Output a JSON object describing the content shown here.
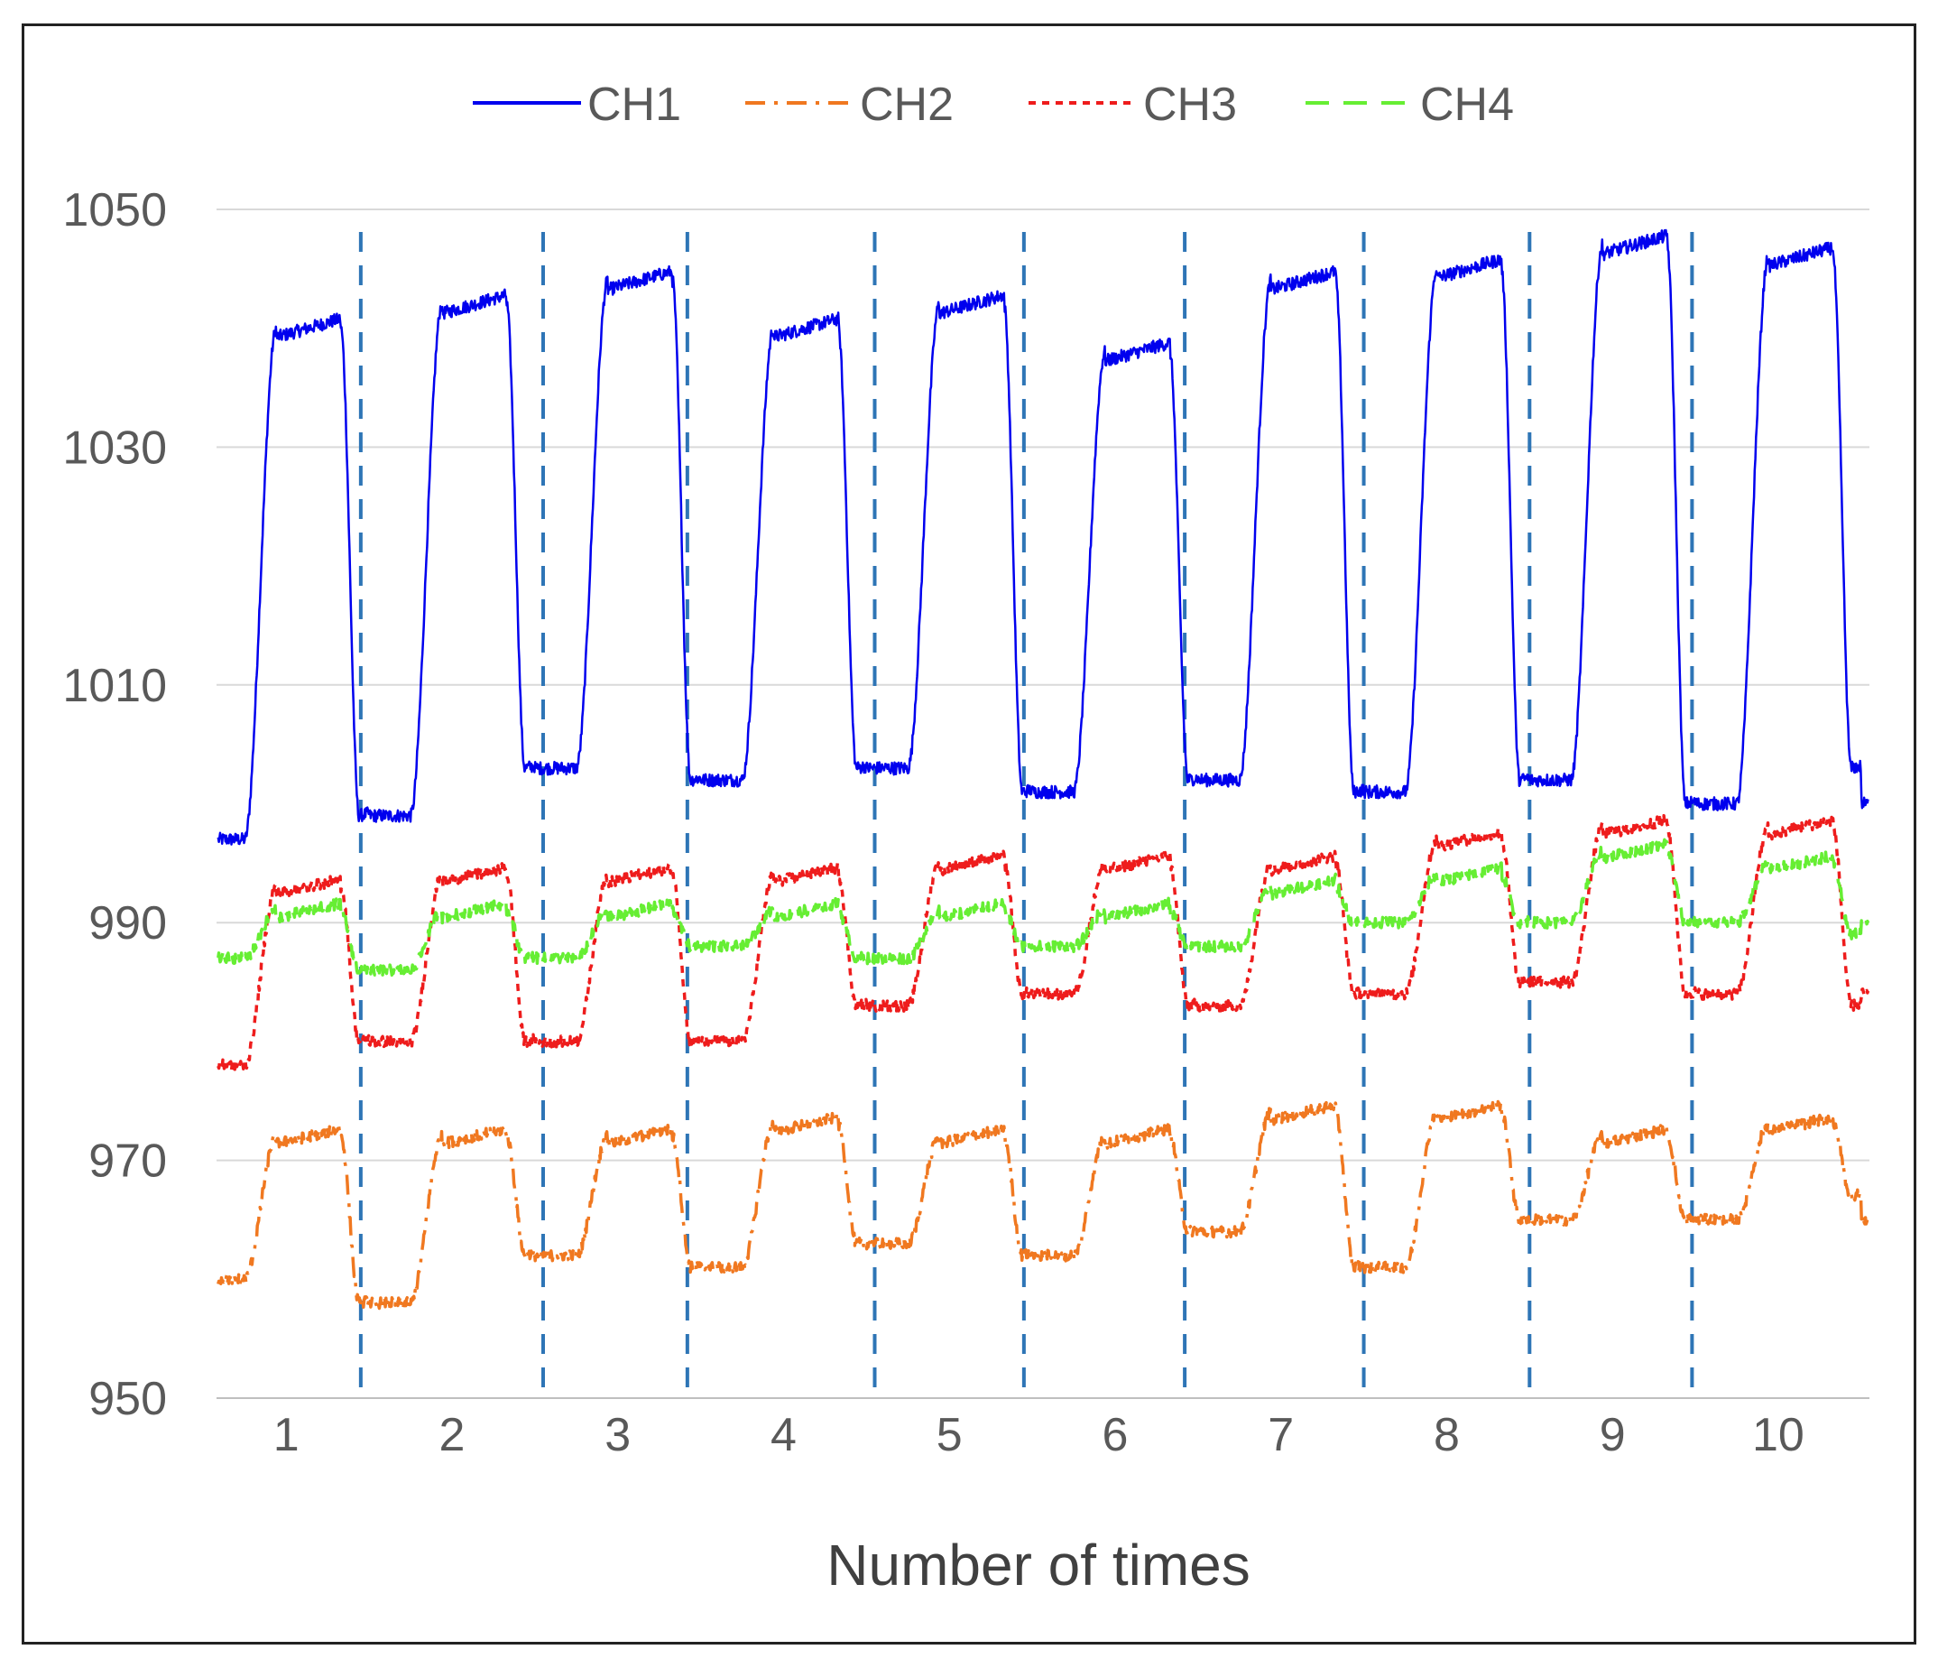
{
  "chart_data": {
    "type": "line",
    "title": "",
    "xlabel": "Number of times",
    "ylabel": "",
    "ylim": [
      950,
      1050
    ],
    "yticks": [
      950,
      970,
      990,
      1010,
      1030,
      1050
    ],
    "ytick_labels": [
      "950",
      "970",
      "990",
      "1010",
      "1030",
      "1050"
    ],
    "xlim": [
      0.58,
      10.55
    ],
    "xticks": [
      1,
      2,
      3,
      4,
      5,
      6,
      7,
      8,
      9,
      10
    ],
    "xtick_labels": [
      "1",
      "2",
      "3",
      "4",
      "5",
      "6",
      "7",
      "8",
      "9",
      "10"
    ],
    "grid": "horizontal",
    "legend_position": "top",
    "vertical_markers": [
      1.45,
      2.55,
      3.42,
      4.55,
      5.45,
      6.42,
      7.5,
      8.5,
      9.48
    ],
    "vertical_marker_color": "#2e75b6",
    "series": [
      {
        "name": "CH1",
        "color": "#0000ee",
        "dash": "solid",
        "cycles": [
          {
            "low": 997,
            "high": 1040
          },
          {
            "low": 999,
            "high": 1042
          },
          {
            "low": 1003,
            "high": 1044
          },
          {
            "low": 1002,
            "high": 1040
          },
          {
            "low": 1003,
            "high": 1042
          },
          {
            "low": 1001,
            "high": 1038
          },
          {
            "low": 1002,
            "high": 1044
          },
          {
            "low": 1001,
            "high": 1045
          },
          {
            "low": 1002,
            "high": 1047
          },
          {
            "low": 1000,
            "high": 1046
          }
        ],
        "tail": 1003
      },
      {
        "name": "CH2",
        "color": "#f07820",
        "dash": "dashdot",
        "cycles": [
          {
            "low": 960,
            "high": 972
          },
          {
            "low": 958,
            "high": 972
          },
          {
            "low": 962,
            "high": 972
          },
          {
            "low": 961,
            "high": 973
          },
          {
            "low": 963,
            "high": 972
          },
          {
            "low": 962,
            "high": 972
          },
          {
            "low": 964,
            "high": 974
          },
          {
            "low": 961,
            "high": 974
          },
          {
            "low": 965,
            "high": 972
          },
          {
            "low": 965,
            "high": 973
          }
        ],
        "tail": 967
      },
      {
        "name": "CH3",
        "color": "#ee1c1c",
        "dash": "dotted",
        "cycles": [
          {
            "low": 978,
            "high": 993
          },
          {
            "low": 980,
            "high": 994
          },
          {
            "low": 980,
            "high": 994
          },
          {
            "low": 980,
            "high": 994
          },
          {
            "low": 983,
            "high": 995
          },
          {
            "low": 984,
            "high": 995
          },
          {
            "low": 983,
            "high": 995
          },
          {
            "low": 984,
            "high": 997
          },
          {
            "low": 985,
            "high": 998
          },
          {
            "low": 984,
            "high": 998
          }
        ],
        "tail": 983
      },
      {
        "name": "CH4",
        "color": "#66ee33",
        "dash": "dashed",
        "cycles": [
          {
            "low": 987,
            "high": 991
          },
          {
            "low": 986,
            "high": 991
          },
          {
            "low": 987,
            "high": 991
          },
          {
            "low": 988,
            "high": 991
          },
          {
            "low": 987,
            "high": 991
          },
          {
            "low": 988,
            "high": 991
          },
          {
            "low": 988,
            "high": 993
          },
          {
            "low": 990,
            "high": 994
          },
          {
            "low": 990,
            "high": 996
          },
          {
            "low": 990,
            "high": 995
          }
        ],
        "tail": 989
      }
    ]
  }
}
